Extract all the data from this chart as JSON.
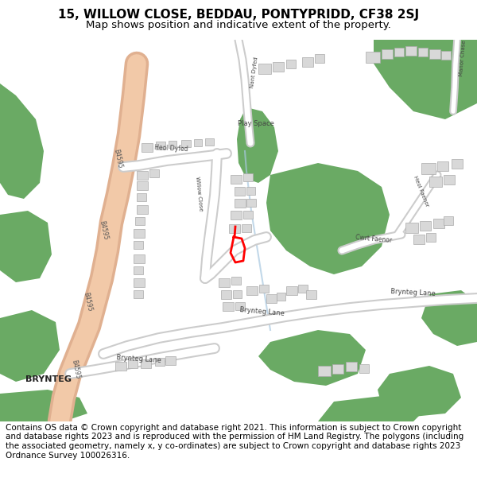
{
  "title_line1": "15, WILLOW CLOSE, BEDDAU, PONTYPRIDD, CF38 2SJ",
  "title_line2": "Map shows position and indicative extent of the property.",
  "footer_text": "Contains OS data © Crown copyright and database right 2021. This information is subject to Crown copyright and database rights 2023 and is reproduced with the permission of HM Land Registry. The polygons (including the associated geometry, namely x, y co-ordinates) are subject to Crown copyright and database rights 2023 Ordnance Survey 100026316.",
  "title_fontsize": 11,
  "subtitle_fontsize": 9.5,
  "footer_fontsize": 7.5,
  "bg_color": "#ffffff",
  "road_color": "#f2c9a8",
  "road_edge_color": "#e0b090",
  "green_color": "#6aaa64",
  "building_color": "#d8d8d8",
  "building_edge": "#aaaaaa",
  "water_color": "#b8d4e8",
  "plot_color": "#ff0000"
}
